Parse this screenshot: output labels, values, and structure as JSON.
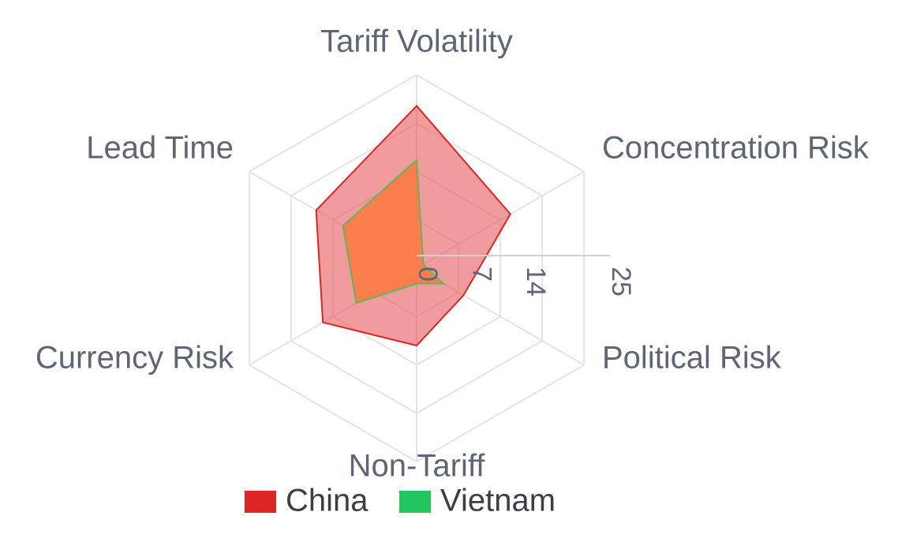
{
  "chart_data": {
    "type": "radar",
    "axes": [
      "Tariff Volatility",
      "Concentration Risk",
      "Political Risk",
      "Non-Tariff",
      "Currency Risk",
      "Lead Time"
    ],
    "rmax": 25,
    "ticks": [
      "0",
      "7",
      "14",
      "25"
    ],
    "tick_values": [
      0,
      7,
      14,
      25
    ],
    "series": [
      {
        "name": "China",
        "values": [
          21,
          14,
          7,
          10,
          14,
          15
        ],
        "color": "#dc2626",
        "fill": "rgba(232, 95, 95, 0.62)"
      },
      {
        "name": "Vietnam",
        "values": [
          14,
          1,
          4,
          2,
          9,
          11
        ],
        "color": "#5cb85c",
        "fill": "rgba(255, 120, 60, 0.82)"
      }
    ],
    "legend": {
      "position": "bottom",
      "items": [
        {
          "label": "China",
          "color": "#dc2626"
        },
        {
          "label": "Vietnam",
          "color": "#22c55e"
        }
      ]
    }
  }
}
